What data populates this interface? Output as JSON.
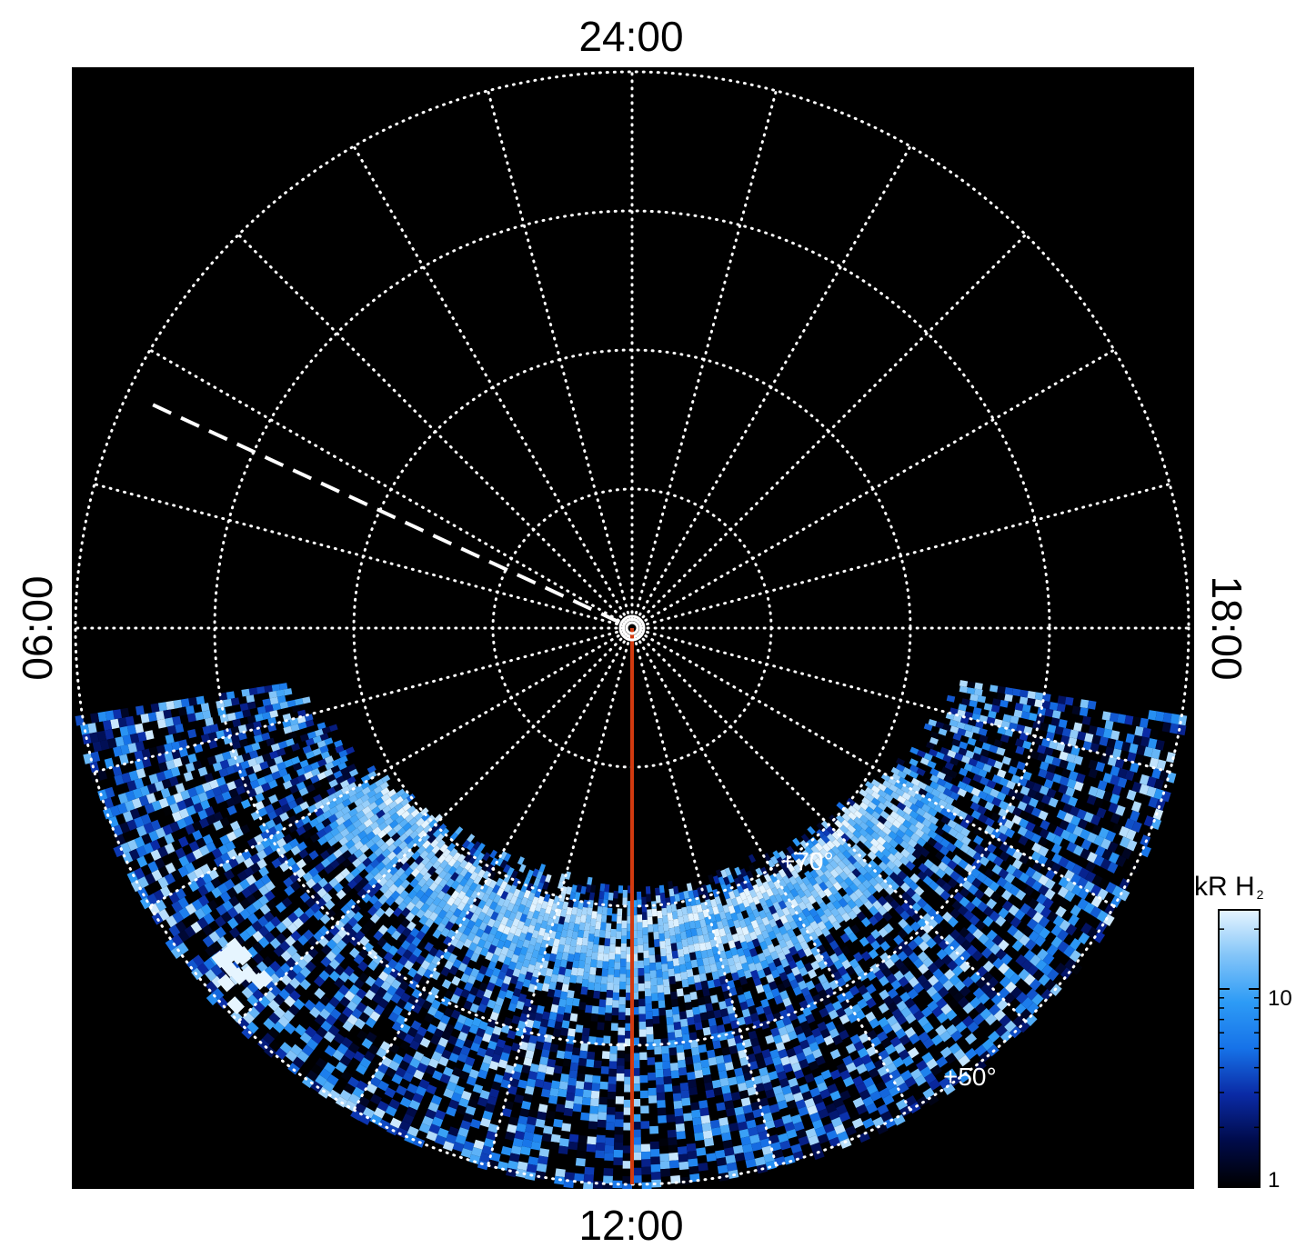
{
  "chart_data": {
    "type": "heatmap",
    "projection": "polar",
    "title": "",
    "colormap": "blue",
    "background_color": "#000000",
    "grid_color": "#ffffff",
    "grid": true,
    "local_time_labels": [
      {
        "text": "24:00",
        "side": "top",
        "degrees": 180
      },
      {
        "text": "18:00",
        "side": "right",
        "degrees": 90
      },
      {
        "text": "12:00",
        "side": "bottom",
        "degrees": 0
      },
      {
        "text": "06:00",
        "side": "left",
        "degrees": 270
      }
    ],
    "latitude_labels": [
      {
        "text": "+70°",
        "colatitude_deg": 20,
        "local_time_deg": 45
      },
      {
        "text": "+50°",
        "colatitude_deg": 40,
        "local_time_deg": 45
      }
    ],
    "colatitude_circles_deg": [
      10,
      20,
      30,
      40
    ],
    "meridian_step_deg": 15,
    "coverage": {
      "colatitude_max_deg": 40,
      "observed_from_degrees": -81,
      "observed_to_degrees": 81
    },
    "intensity_bands": [
      {
        "colatitude_deg": 20.8,
        "width_deg": 1.3,
        "intensity_kR": 20
      },
      {
        "colatitude_deg": 21.8,
        "width_deg": 1.1,
        "intensity_kR": 12
      },
      {
        "colatitude_deg": 23.0,
        "width_deg": 1.2,
        "intensity_kR": 18
      },
      {
        "colatitude_deg": 24.1,
        "width_deg": 1.0,
        "intensity_kR": 10
      },
      {
        "colatitude_deg": 25.2,
        "width_deg": 1.1,
        "intensity_kR": 14
      }
    ],
    "dayside_bright_patch": {
      "colatitude_deg": 38,
      "local_time_deg": 310,
      "intensity_kR": 25
    },
    "dashed_line": {
      "local_time_deg": 245,
      "colatitude_from_deg": 1,
      "colatitude_to_deg": 38
    },
    "red_line": {
      "local_time_deg": 0,
      "colatitude_from_deg": 0,
      "colatitude_to_deg": 40,
      "color": "#d23a0f"
    },
    "pole_marker": "double-circle",
    "colorbar": {
      "title": "kR H",
      "title_subscript": "2",
      "scale": "log",
      "range": [
        1,
        25
      ],
      "tick_labels": [
        "1",
        "10"
      ],
      "ticks": [
        1,
        10
      ],
      "colors": [
        "#000000",
        "#000b4a",
        "#0a2aa5",
        "#1672e8",
        "#2d9bf6",
        "#82c4f8",
        "#e6f5ff"
      ]
    }
  }
}
